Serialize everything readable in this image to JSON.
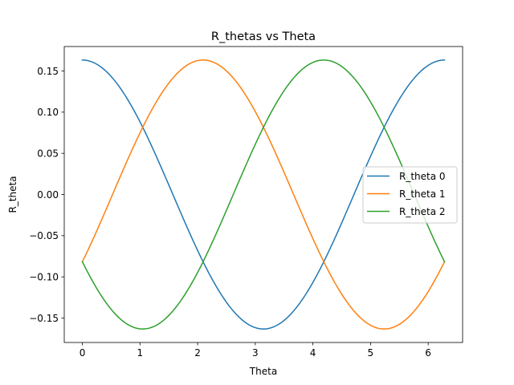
{
  "chart_data": {
    "type": "line",
    "title": "R_thetas vs Theta",
    "xlabel": "Theta",
    "ylabel": "R_theta",
    "xlim": [
      -0.3142,
      6.5974
    ],
    "ylim": [
      -0.1797,
      0.1797
    ],
    "x_ticks": [
      0,
      1,
      2,
      3,
      4,
      5,
      6
    ],
    "x_tick_labels": [
      "0",
      "1",
      "2",
      "3",
      "4",
      "5",
      "6"
    ],
    "y_ticks": [
      -0.15,
      -0.1,
      -0.05,
      0.0,
      0.05,
      0.1,
      0.15
    ],
    "y_tick_labels": [
      "−0.15",
      "−0.10",
      "−0.05",
      "0.00",
      "0.05",
      "0.10",
      "0.15"
    ],
    "grid": false,
    "legend_position": "center-right",
    "series": [
      {
        "name": "R_theta 0",
        "color": "#1f77b4",
        "x": [
          0,
          0.3142,
          0.6283,
          0.9425,
          1.2566,
          1.5708,
          1.885,
          2.1991,
          2.5133,
          2.8274,
          3.1416,
          3.4558,
          3.7699,
          4.0841,
          4.3982,
          4.7124,
          5.0265,
          5.3407,
          5.6549,
          5.969,
          6.2832
        ],
        "y": [
          0.1633,
          0.1553,
          0.1321,
          0.096,
          0.0505,
          0.0,
          -0.0505,
          -0.096,
          -0.1321,
          -0.1553,
          -0.1633,
          -0.1553,
          -0.1321,
          -0.096,
          -0.0505,
          0.0,
          0.0505,
          0.096,
          0.1321,
          0.1553,
          0.1633
        ]
      },
      {
        "name": "R_theta 1",
        "color": "#ff7f0e",
        "x": [
          0,
          0.3142,
          0.6283,
          0.9425,
          1.2566,
          1.5708,
          1.885,
          2.1991,
          2.5133,
          2.8274,
          3.1416,
          3.4558,
          3.7699,
          4.0841,
          4.3982,
          4.7124,
          5.0265,
          5.3407,
          5.6549,
          5.969,
          6.2832
        ],
        "y": [
          -0.0817,
          -0.1215,
          -0.1478,
          -0.1624,
          -0.1597,
          -0.1414,
          -0.1092,
          -0.0665,
          -0.0171,
          0.0339,
          0.0817,
          0.1215,
          0.1478,
          0.1624,
          0.1597,
          0.1414,
          0.1092,
          0.0665,
          0.0171,
          -0.0339,
          -0.0817
        ]
      },
      {
        "name": "R_theta 2",
        "color": "#2ca02c",
        "x": [
          0,
          0.3142,
          0.6283,
          0.9425,
          1.2566,
          1.5708,
          1.885,
          2.1991,
          2.5133,
          2.8274,
          3.1416,
          3.4558,
          3.7699,
          4.0841,
          4.3982,
          4.7124,
          5.0265,
          5.3407,
          5.6549,
          5.969,
          6.2832
        ],
        "y": [
          -0.0817,
          -0.0339,
          0.0171,
          0.0665,
          0.1092,
          0.1414,
          0.1597,
          0.1624,
          0.1478,
          0.1215,
          0.0817,
          0.0339,
          -0.0171,
          -0.0665,
          -0.1092,
          -0.1414,
          -0.1597,
          -0.1624,
          -0.1478,
          -0.1215,
          -0.0817
        ]
      }
    ]
  }
}
